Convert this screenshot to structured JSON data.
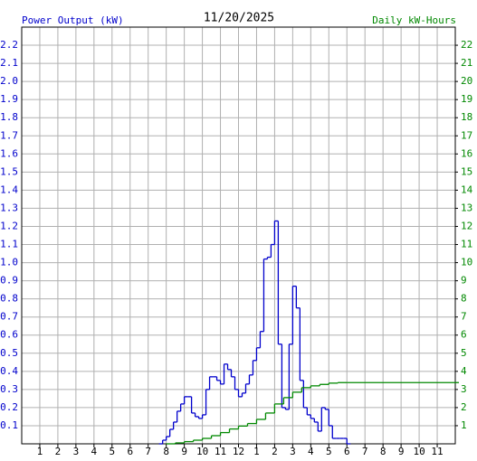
{
  "chart_data": {
    "type": "step",
    "title": "11/20/2025",
    "grid": true,
    "xlim": [
      0,
      24
    ],
    "xticks": [
      1,
      2,
      3,
      4,
      5,
      6,
      7,
      8,
      9,
      10,
      11,
      12,
      {
        "value": 13,
        "label": "1"
      },
      {
        "value": 14,
        "label": "2"
      },
      {
        "value": 15,
        "label": "3"
      },
      {
        "value": 16,
        "label": "4"
      },
      {
        "value": 17,
        "label": "5"
      },
      {
        "value": 18,
        "label": "6"
      },
      {
        "value": 19,
        "label": "7"
      },
      {
        "value": 20,
        "label": "8"
      },
      {
        "value": 21,
        "label": "9"
      },
      {
        "value": 22,
        "label": "10"
      },
      {
        "value": 23,
        "label": "11"
      }
    ],
    "ylim": [
      0,
      2.3
    ],
    "yticks": [
      0.1,
      0.2,
      0.3,
      0.4,
      0.5,
      0.6,
      0.7,
      0.8,
      0.9,
      {
        "value": 1,
        "label": "1.0"
      },
      1.1,
      1.2,
      1.3,
      1.4,
      1.5,
      1.6,
      1.7,
      1.8,
      1.9,
      {
        "value": 2,
        "label": "2.0"
      },
      2.1,
      2.2
    ],
    "y2lim": [
      0,
      23
    ],
    "y2ticks": [
      1,
      2,
      3,
      4,
      5,
      6,
      7,
      8,
      9,
      10,
      11,
      12,
      13,
      14,
      15,
      16,
      17,
      18,
      19,
      20,
      21,
      22
    ],
    "series": [
      {
        "name": "Power Output (kW)",
        "color": "#0000cc",
        "axis": "y",
        "x": [
          7.6,
          7.8,
          8.0,
          8.2,
          8.4,
          8.6,
          8.8,
          9.0,
          9.2,
          9.4,
          9.6,
          9.8,
          10.0,
          10.2,
          10.4,
          10.6,
          10.8,
          11.0,
          11.2,
          11.4,
          11.6,
          11.8,
          12.0,
          12.2,
          12.4,
          12.6,
          12.8,
          13.0,
          13.2,
          13.4,
          13.6,
          13.8,
          14.0,
          14.2,
          14.4,
          14.6,
          14.8,
          15.0,
          15.2,
          15.4,
          15.6,
          15.8,
          16.0,
          16.2,
          16.4,
          16.6,
          16.8,
          17.0,
          17.2,
          17.4,
          17.6,
          17.8,
          18.0
        ],
        "values": [
          0,
          0.02,
          0.04,
          0.08,
          0.12,
          0.18,
          0.22,
          0.26,
          0.26,
          0.17,
          0.15,
          0.14,
          0.16,
          0.3,
          0.37,
          0.37,
          0.35,
          0.33,
          0.44,
          0.41,
          0.37,
          0.3,
          0.26,
          0.28,
          0.33,
          0.38,
          0.46,
          0.53,
          0.62,
          1.02,
          1.03,
          1.1,
          1.23,
          0.55,
          0.2,
          0.19,
          0.55,
          0.87,
          0.75,
          0.35,
          0.2,
          0.16,
          0.14,
          0.12,
          0.07,
          0.2,
          0.19,
          0.1,
          0.03,
          0.03,
          0.03,
          0.03,
          0
        ]
      },
      {
        "name": "Daily kW-Hours",
        "color": "#008800",
        "axis": "y2",
        "x": [
          8,
          8.5,
          9,
          9.5,
          10,
          10.5,
          11,
          11.5,
          12,
          12.5,
          13,
          13.5,
          14,
          14.5,
          15,
          15.5,
          16,
          16.5,
          17,
          17.5,
          18,
          24
        ],
        "values": [
          0,
          0.05,
          0.12,
          0.2,
          0.3,
          0.45,
          0.62,
          0.82,
          0.98,
          1.12,
          1.35,
          1.7,
          2.2,
          2.55,
          2.85,
          3.1,
          3.2,
          3.28,
          3.35,
          3.38,
          3.38,
          3.38
        ]
      }
    ]
  }
}
